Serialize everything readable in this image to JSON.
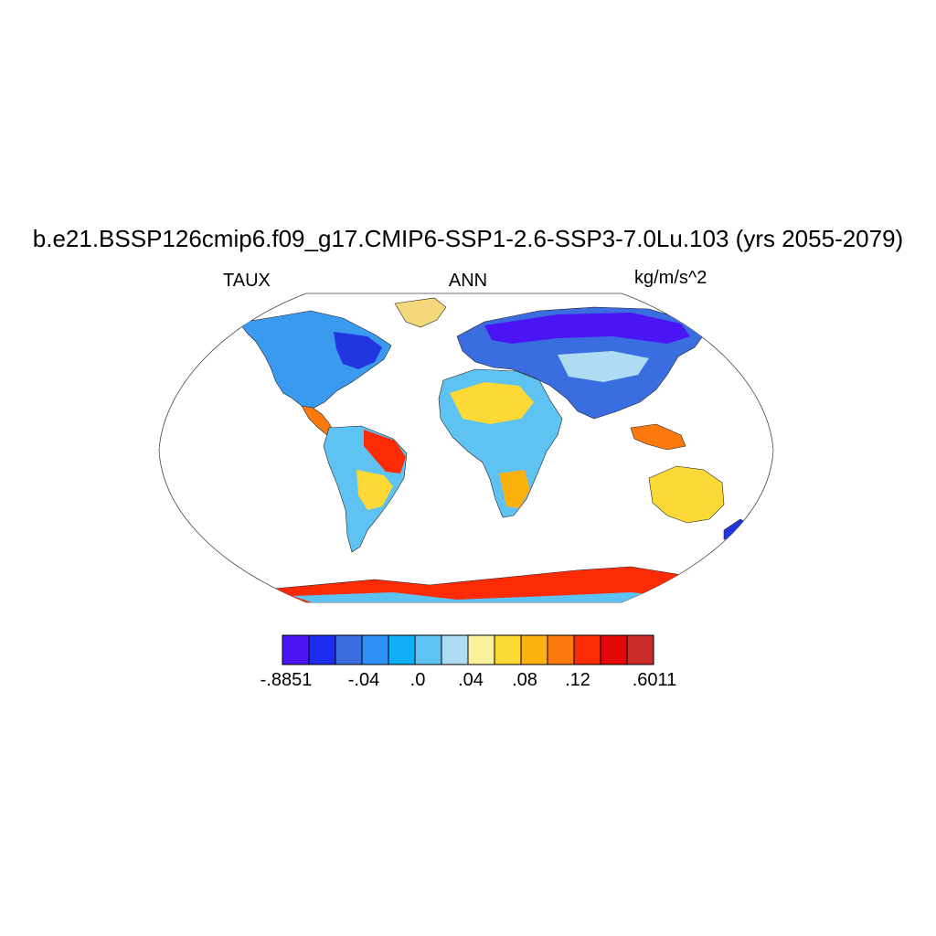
{
  "header": {
    "title": "b.e21.BSSP126cmip6.f09_g17.CMIP6-SSP1-2.6-SSP3-7.0Lu.103 (yrs 2055-2079)",
    "left_label": "TAUX",
    "center_label": "ANN",
    "right_label": "kg/m/s^2"
  },
  "colorbar": {
    "colors": [
      "#4a14f5",
      "#1c2cee",
      "#3a6ee0",
      "#2d8ef5",
      "#10b0f8",
      "#5ec2f3",
      "#aedcf3",
      "#fdf29c",
      "#fcd934",
      "#fcb10e",
      "#fc7a0d",
      "#fc2a05",
      "#e20808",
      "#cc2a2a"
    ],
    "labels": [
      ".8851",
      "-.04",
      ".0",
      ".04",
      ".08",
      ".12",
      ".6011"
    ],
    "label_prefix_first": "-"
  },
  "map_regions": [
    {
      "name": "north-america",
      "fill": "#3a9af0"
    },
    {
      "name": "greenland",
      "fill": "#f5d87a"
    },
    {
      "name": "south-america",
      "fill": "#5ec2f3"
    },
    {
      "name": "africa",
      "fill": "#5ec2f3"
    },
    {
      "name": "eurasia",
      "fill": "#2d5ef0"
    },
    {
      "name": "australia",
      "fill": "#fcd934"
    },
    {
      "name": "antarctica",
      "fill": "#fc2a05"
    }
  ]
}
